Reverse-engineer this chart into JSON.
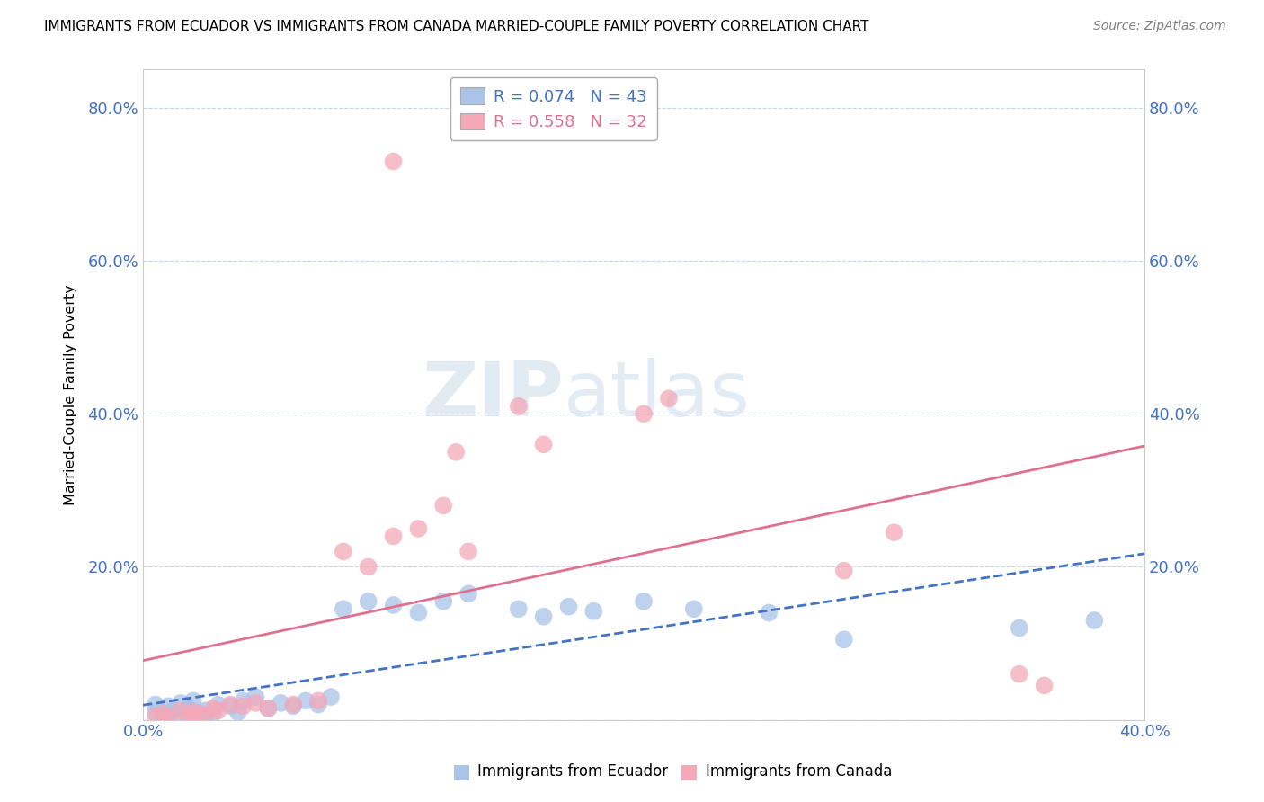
{
  "title": "IMMIGRANTS FROM ECUADOR VS IMMIGRANTS FROM CANADA MARRIED-COUPLE FAMILY POVERTY CORRELATION CHART",
  "source": "Source: ZipAtlas.com",
  "ylabel": "Married-Couple Family Poverty",
  "xlim": [
    0.0,
    0.42
  ],
  "ylim": [
    -0.02,
    0.88
  ],
  "ecuador_color": "#aac4e8",
  "canada_color": "#f4a8b8",
  "ecuador_line_color": "#4472c4",
  "canada_line_color": "#e07090",
  "R_ecuador": 0.074,
  "N_ecuador": 43,
  "R_canada": 0.558,
  "N_canada": 32,
  "watermark_zip": "ZIP",
  "watermark_atlas": "atlas",
  "ec_x": [
    0.005,
    0.008,
    0.01,
    0.012,
    0.015,
    0.018,
    0.02,
    0.022,
    0.025,
    0.028,
    0.005,
    0.01,
    0.015,
    0.018,
    0.02,
    0.025,
    0.03,
    0.035,
    0.038,
    0.04,
    0.045,
    0.05,
    0.055,
    0.06,
    0.065,
    0.07,
    0.075,
    0.08,
    0.09,
    0.1,
    0.11,
    0.12,
    0.13,
    0.15,
    0.16,
    0.17,
    0.18,
    0.2,
    0.22,
    0.25,
    0.28,
    0.35,
    0.38
  ],
  "ec_y": [
    0.01,
    0.005,
    0.008,
    0.012,
    0.003,
    0.015,
    0.007,
    0.01,
    0.005,
    0.008,
    0.02,
    0.018,
    0.022,
    0.015,
    0.025,
    0.012,
    0.02,
    0.018,
    0.01,
    0.025,
    0.03,
    0.015,
    0.022,
    0.018,
    0.025,
    0.02,
    0.03,
    0.145,
    0.155,
    0.15,
    0.14,
    0.155,
    0.165,
    0.145,
    0.135,
    0.148,
    0.142,
    0.155,
    0.145,
    0.14,
    0.105,
    0.12,
    0.13
  ],
  "ca_x": [
    0.005,
    0.008,
    0.01,
    0.015,
    0.018,
    0.02,
    0.022,
    0.025,
    0.028,
    0.03,
    0.035,
    0.04,
    0.045,
    0.05,
    0.06,
    0.07,
    0.08,
    0.09,
    0.1,
    0.11,
    0.12,
    0.13,
    0.15,
    0.16,
    0.2,
    0.21,
    0.28,
    0.3,
    0.35,
    0.36,
    0.1,
    0.125
  ],
  "ca_y": [
    0.005,
    0.008,
    0.002,
    0.012,
    0.005,
    0.01,
    0.008,
    0.005,
    0.015,
    0.012,
    0.02,
    0.018,
    0.022,
    0.015,
    0.02,
    0.025,
    0.22,
    0.2,
    0.24,
    0.25,
    0.28,
    0.22,
    0.41,
    0.36,
    0.4,
    0.42,
    0.195,
    0.245,
    0.06,
    0.045,
    0.73,
    0.35
  ]
}
